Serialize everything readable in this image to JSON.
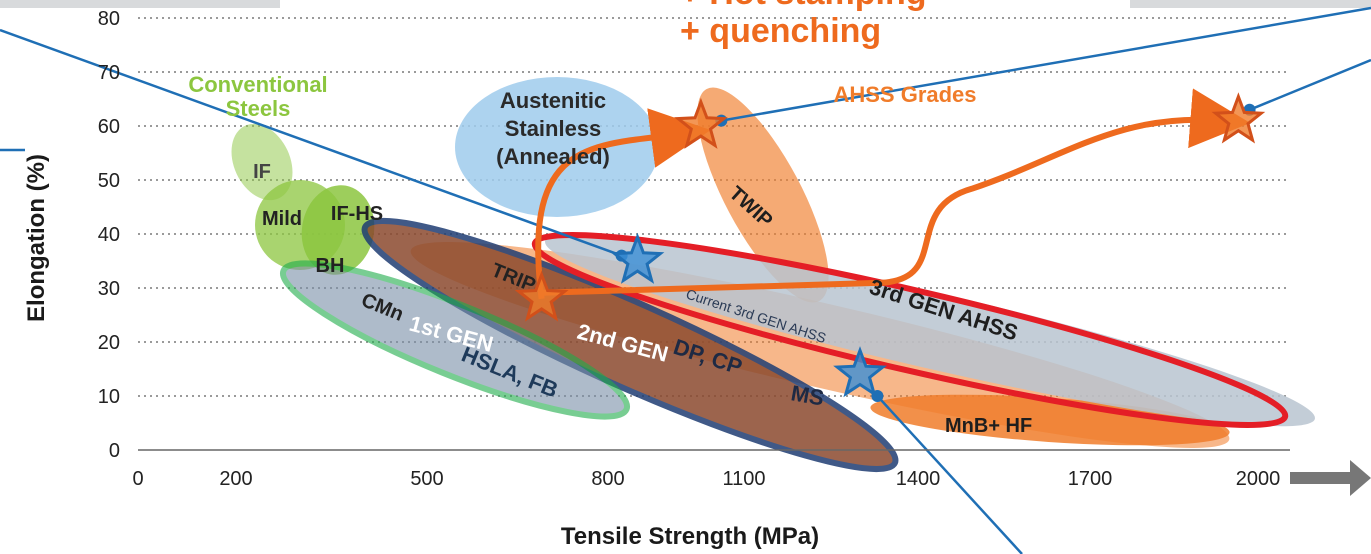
{
  "chart_data": {
    "type": "scatter",
    "xlabel": "Tensile Strength (MPa)",
    "ylabel": "Elongation (%)",
    "xlim": [
      0,
      2200
    ],
    "ylim": [
      0,
      80
    ],
    "x_ticks": [
      "0",
      "200",
      "500",
      "800",
      "1100",
      "1400",
      "1700",
      "2000"
    ],
    "y_ticks": [
      "0",
      "10",
      "20",
      "30",
      "40",
      "50",
      "60",
      "70",
      "80"
    ],
    "grid": "horizontal dotted",
    "colors": {
      "conventional": "#8cc63f",
      "ahss": "#f07c2a",
      "austenitic": "#9fcbec",
      "first_gen": "#1fad4b",
      "second_gen": "#1f3d73",
      "third_gen": "#e41e26",
      "current_third_gen": "#b8c4d0",
      "callout_line": "#1f6fb5",
      "arrow": "#ee6a1e",
      "star_orange": "#f07c2a",
      "star_blue": "#3b8fd6"
    },
    "labels": {
      "conventional": "Conventional\nSteels",
      "ahss": "AHSS Grades",
      "austenitic": "Austenitic\nStainless\n(Annealed)",
      "hot_stamping": "+ Hot stamping\n+ quenching",
      "if": "IF",
      "mild": "Mild",
      "if_hs": "IF-HS",
      "bh": "BH",
      "cmn": "CMn",
      "hsla": "HSLA, FB",
      "trip": "TRIP",
      "dp_cp": "DP, CP",
      "ms": "MS",
      "twip": "TWIP",
      "mnb_hf": "MnB+ HF",
      "first_gen": "1st GEN",
      "second_gen": "2nd GEN",
      "third_gen": "3rd GEN AHSS",
      "current_third_gen": "Current 3rd GEN AHSS"
    },
    "stars": [
      {
        "name": "star-orange-1",
        "x": 690,
        "y": 28,
        "color": "orange"
      },
      {
        "name": "star-orange-2",
        "x": 1005,
        "y": 60,
        "color": "orange"
      },
      {
        "name": "star-orange-3",
        "x": 1965,
        "y": 61,
        "color": "orange"
      },
      {
        "name": "star-blue-1",
        "x": 865,
        "y": 35,
        "color": "blue"
      },
      {
        "name": "star-blue-2",
        "x": 1300,
        "y": 14,
        "color": "blue"
      }
    ],
    "callout_points": [
      {
        "x": 830,
        "y": 36
      },
      {
        "x": 1050,
        "y": 61
      },
      {
        "x": 1985,
        "y": 63
      },
      {
        "x": 1330,
        "y": 10
      }
    ]
  }
}
